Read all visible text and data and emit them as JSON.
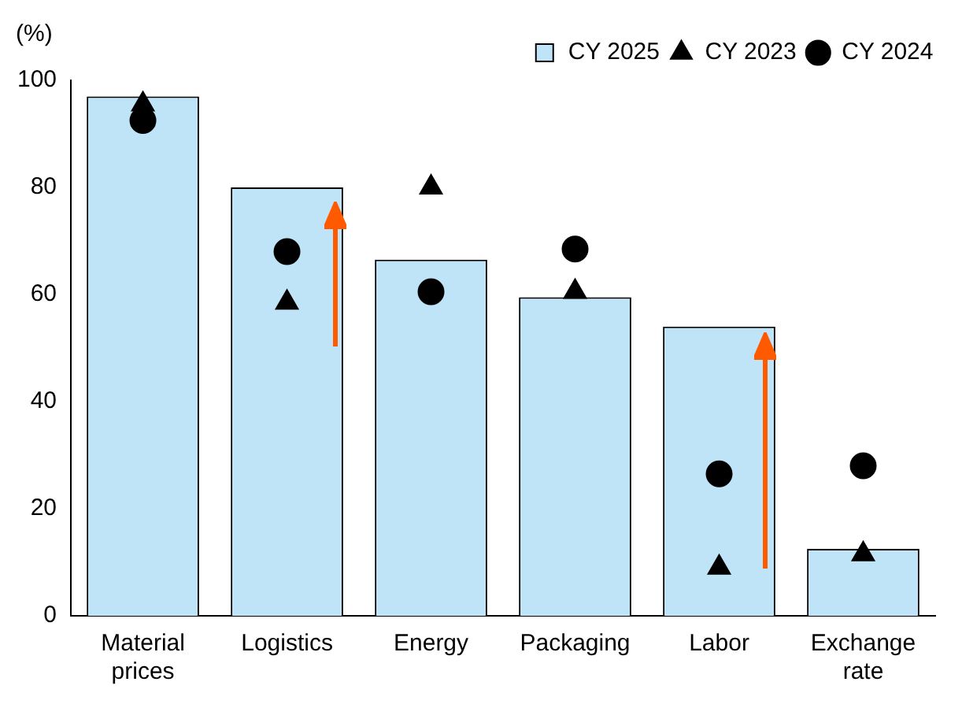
{
  "chart_data": {
    "type": "bar",
    "ylabel": "(%)",
    "categories": [
      "Material prices",
      "Logistics",
      "Energy",
      "Packaging",
      "Labor",
      "Exchange rate"
    ],
    "series": [
      {
        "name": "CY 2025",
        "color": "#bfe4f8",
        "values": [
          97,
          80,
          66.5,
          59.5,
          54,
          12.5
        ]
      },
      {
        "name": "CY 2023",
        "type": "scatter",
        "marker": "triangle",
        "color": "#000000",
        "values": [
          95.5,
          58.5,
          80,
          60.5,
          9,
          11.5
        ]
      },
      {
        "name": "CY 2024",
        "type": "scatter",
        "marker": "circle",
        "color": "#000000",
        "values": [
          92.5,
          68,
          60.5,
          68.5,
          26.5,
          28
        ]
      }
    ],
    "ylim": [
      0,
      100
    ],
    "yticks": [
      0,
      20,
      40,
      60,
      80,
      100
    ],
    "grid": false,
    "legend": "top right"
  }
}
